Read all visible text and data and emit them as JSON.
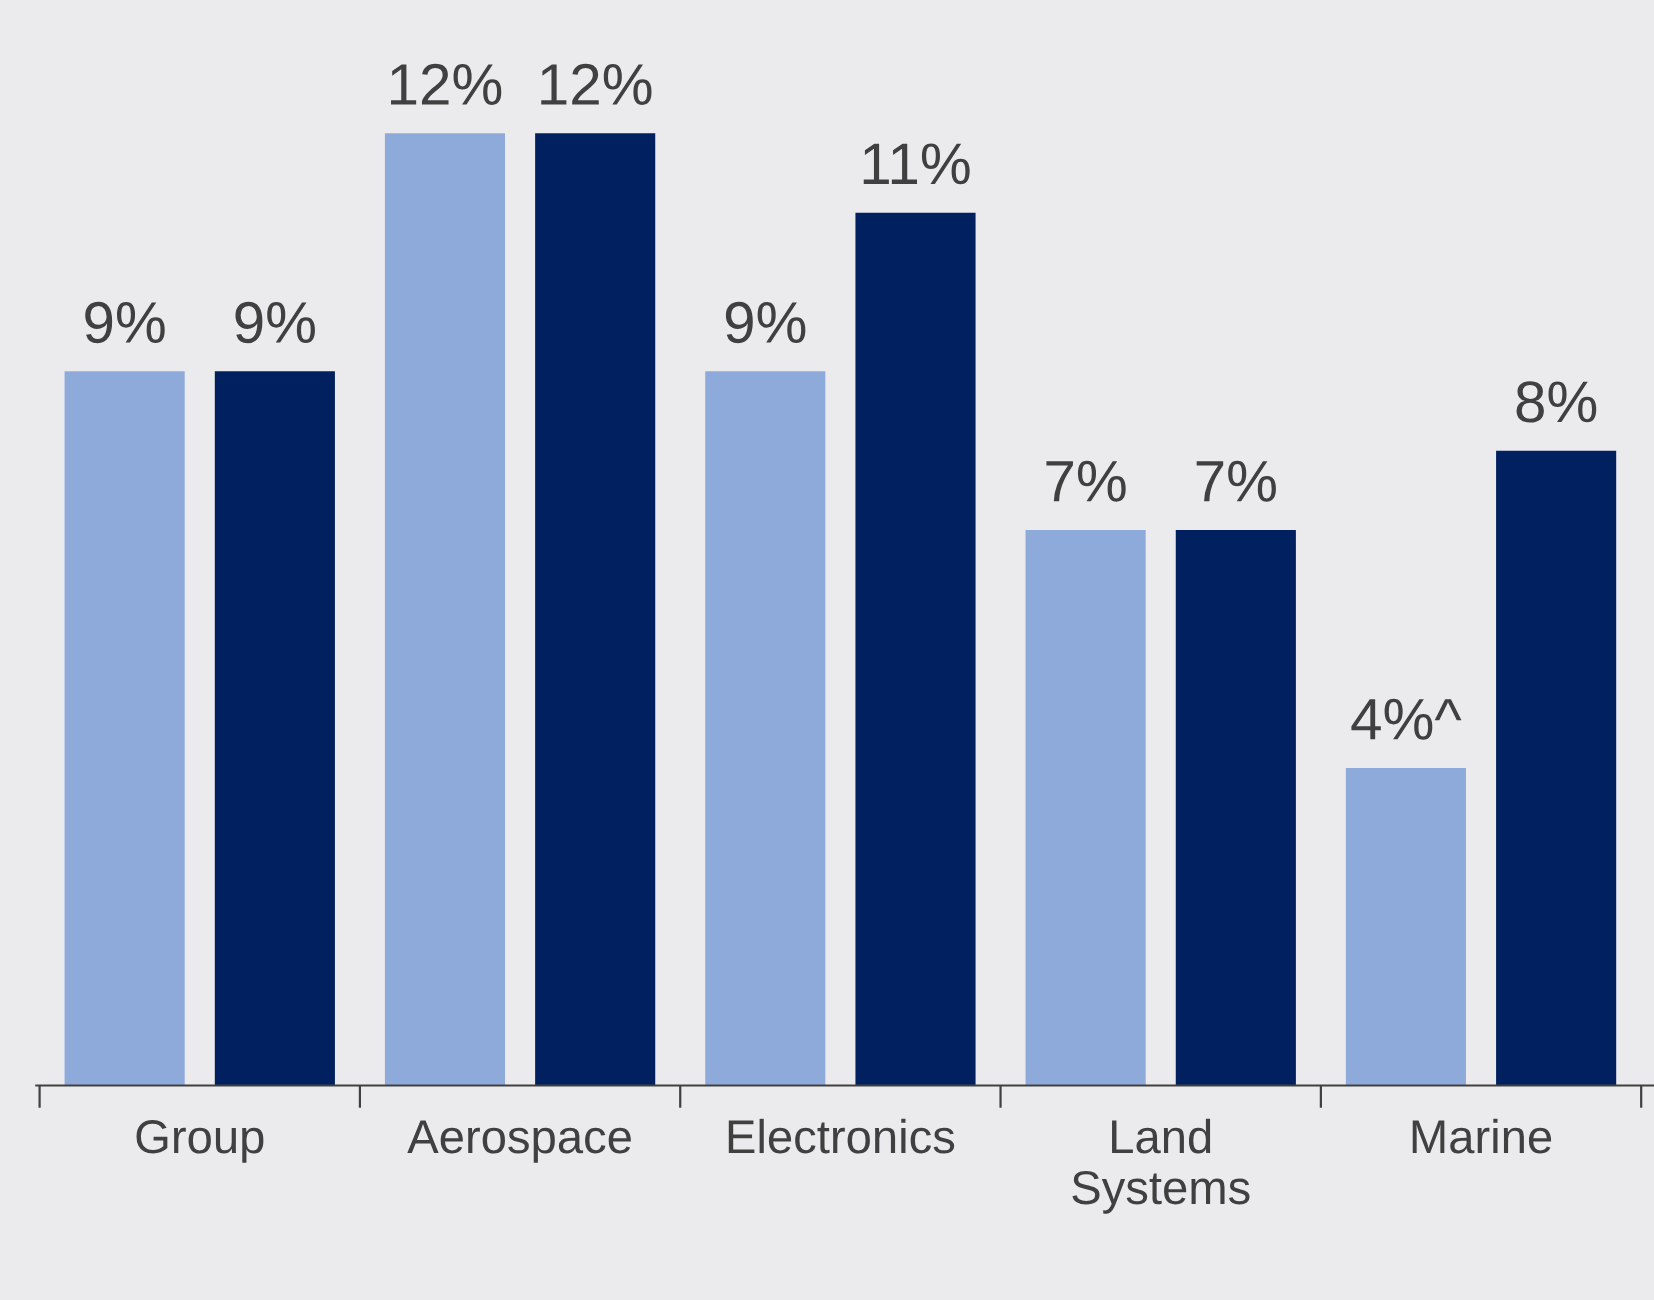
{
  "chart_data": {
    "type": "bar",
    "categories": [
      "Group",
      "Aerospace",
      "Electronics",
      "Land\nSystems",
      "Marine"
    ],
    "series": [
      {
        "color": "#8eaadb",
        "values": [
          9,
          12,
          9,
          7,
          4
        ],
        "value_labels": [
          "9%",
          "12%",
          "9%",
          "7%",
          "4%^"
        ]
      },
      {
        "color": "#002060",
        "values": [
          9,
          12,
          11,
          7,
          8
        ],
        "value_labels": [
          "9%",
          "12%",
          "11%",
          "7%",
          "8%"
        ]
      }
    ],
    "grid": false,
    "legend": false,
    "tick_labels": "x"
  }
}
